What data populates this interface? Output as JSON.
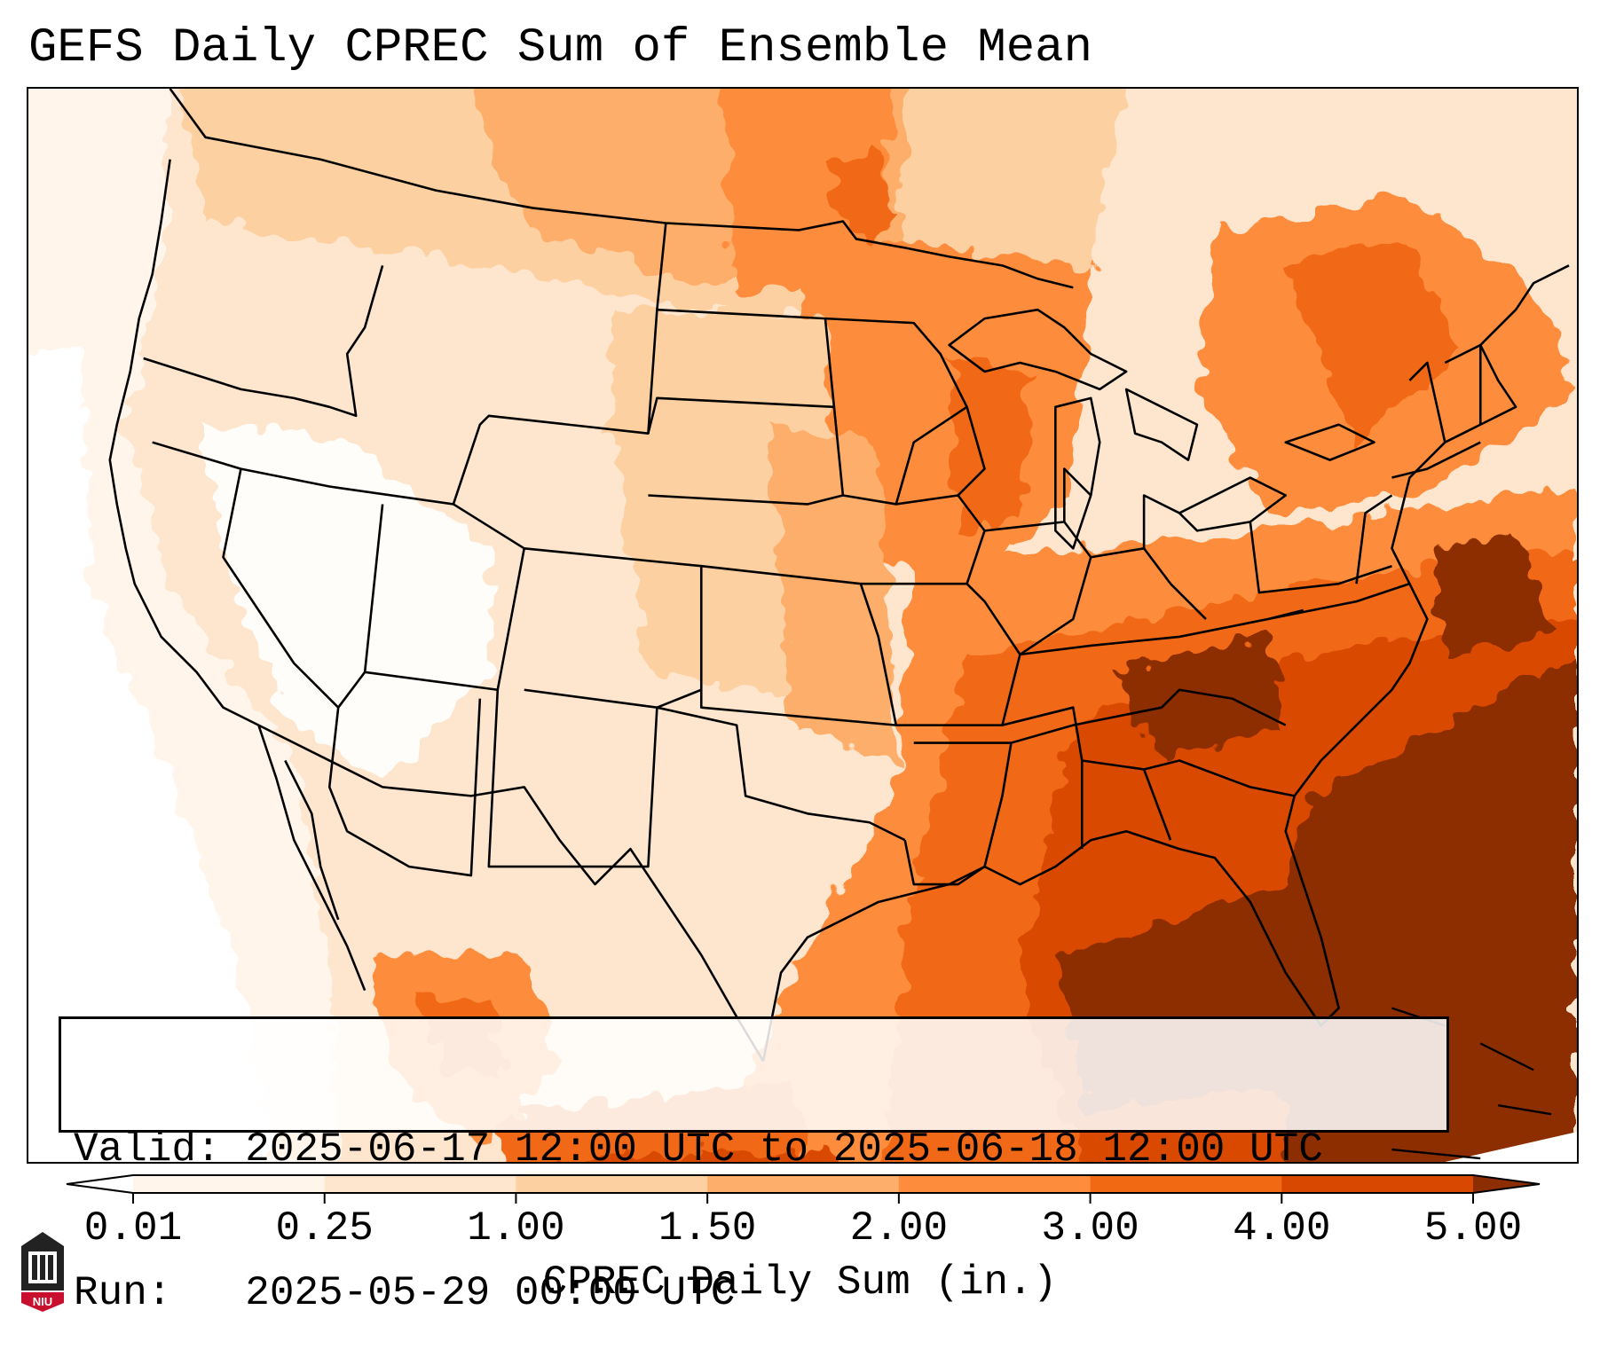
{
  "title": "GEFS Daily CPREC Sum of Ensemble Mean",
  "valid_line": "Valid: 2025-06-17 12:00 UTC to 2025-06-18 12:00 UTC",
  "run_line": "Run:   2025-05-29 00:00 UTC",
  "colorbar": {
    "label": "CPREC Daily Sum (in.)",
    "ticks": [
      "0.01",
      "0.25",
      "1.00",
      "1.50",
      "2.00",
      "3.00",
      "4.00",
      "5.00"
    ],
    "colors": [
      "#fff5eb",
      "#fee6ce",
      "#fdd0a2",
      "#fdae6b",
      "#fd8d3c",
      "#f16913",
      "#d94801",
      "#8c2d04"
    ],
    "extend": "both"
  },
  "logo": {
    "text": "NIU",
    "accent": "#c8102e"
  },
  "map": {
    "projection": "Lambert conformal, CONUS",
    "variable": "CPREC",
    "units": "in.",
    "max_region": "southeastern U.S. and western Atlantic"
  }
}
